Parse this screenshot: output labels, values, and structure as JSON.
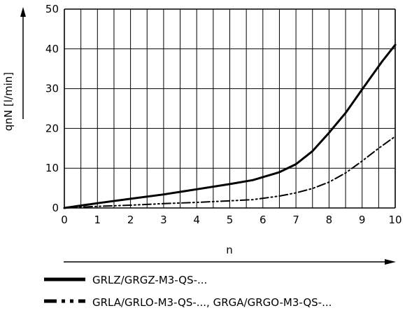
{
  "chart_data": {
    "type": "line",
    "xlabel": "n",
    "ylabel": "qnN [l/min]",
    "xlim": [
      0,
      10
    ],
    "ylim": [
      0,
      50
    ],
    "x_ticks": [
      0,
      1,
      2,
      3,
      4,
      5,
      6,
      7,
      8,
      9,
      10
    ],
    "y_ticks": [
      0,
      10,
      20,
      30,
      40,
      50
    ],
    "x_tick_labels": [
      "0",
      "1",
      "2",
      "3",
      "4",
      "5",
      "6",
      "7",
      "8",
      "9",
      "10"
    ],
    "y_tick_labels": [
      "0",
      "10",
      "20",
      "30",
      "40",
      "50"
    ],
    "x_minor_grid_step": 0.5,
    "grid": true,
    "legend_position": "bottom",
    "series": [
      {
        "name": "GRLZ/GRGZ-M3-QS-...",
        "line_style": "solid",
        "color": "#000000",
        "x": [
          0,
          1,
          2,
          3,
          4,
          5,
          5.7,
          6.5,
          7,
          7.5,
          8,
          8.5,
          9,
          9.6,
          10
        ],
        "y": [
          0,
          1.2,
          2.3,
          3.4,
          4.7,
          6,
          7,
          9,
          11,
          14.3,
          18.9,
          23.9,
          29.8,
          36.8,
          41
        ]
      },
      {
        "name": "GRLA/GRLO-M3-QS-..., GRGA/GRGO-M3-QS-...",
        "line_style": "dash-dot-dot",
        "color": "#000000",
        "x": [
          0,
          1,
          2,
          3,
          4,
          5,
          5.7,
          6.5,
          7,
          7.5,
          8,
          8.5,
          9,
          9.5,
          10
        ],
        "y": [
          0,
          0.4,
          0.7,
          1.1,
          1.4,
          1.8,
          2.1,
          3,
          3.8,
          4.9,
          6.5,
          8.8,
          11.8,
          15,
          18
        ]
      }
    ]
  }
}
